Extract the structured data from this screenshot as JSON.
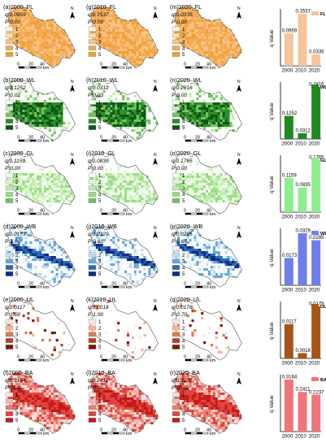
{
  "years": [
    "2000",
    "2010",
    "2020"
  ],
  "axis_label": "q Value",
  "legend_classes": [
    "1",
    "2",
    "3",
    "4",
    "5"
  ],
  "scale_labels": [
    "0",
    "20",
    "40"
  ],
  "scale_unit": "km",
  "north": "N",
  "rows": [
    {
      "type": "FL",
      "colors": [
        "#fff2dc",
        "#fcdcae",
        "#f9c27e",
        "#f5aa57",
        "#efa035"
      ],
      "bar_color": "#f6c49a",
      "panels": [
        {
          "title": "(a)2000_FL",
          "q": "q:0.0959",
          "p": "P:0.00"
        },
        {
          "title": "(g)2010_FL",
          "q": "q:0.1537",
          "p": "P:0.00"
        },
        {
          "title": "(m)2020_FL",
          "q": "q:0.0335",
          "p": "P:0.00"
        }
      ],
      "values": [
        0.0959,
        0.1537,
        0.0335
      ],
      "value_labels": [
        "0.0959",
        "0.1537",
        "0.0335"
      ]
    },
    {
      "type": "WL",
      "colors": [
        "#f4fbf0",
        "#c4ebb4",
        "#73c360",
        "#2c8d2a",
        "#0d5613"
      ],
      "bar_color": "#208a20",
      "panels": [
        {
          "title": "(b)2000_WL",
          "q": "q:0.1252",
          "p": "P:0.02"
        },
        {
          "title": "(h)2010_WL",
          "q": "q:0.0312",
          "p": "P:0.03"
        },
        {
          "title": "(n)2020_WL",
          "q": "q:0.2816",
          "p": "P:0.00"
        }
      ],
      "values": [
        0.1252,
        0.0312,
        0.2816
      ],
      "value_labels": [
        "0.1252",
        "0.0312",
        "0.2816"
      ]
    },
    {
      "type": "GL",
      "colors": [
        "#f6fdf2",
        "#dcf5cf",
        "#bcebaa",
        "#98dc82",
        "#6fc25a"
      ],
      "bar_color": "#8fec8f",
      "panels": [
        {
          "title": "(c)2000_GL",
          "q": "q:0.1159",
          "p": "P:0.00"
        },
        {
          "title": "(i)2010_GL",
          "q": "q:0.0835",
          "p": "P:0.00"
        },
        {
          "title": "(o)2020_GL",
          "q": "q:0.1765",
          "p": "P:0.00"
        }
      ],
      "values": [
        0.1159,
        0.0835,
        0.1765
      ],
      "value_labels": [
        "0.1159",
        "0.0835",
        "0.1765"
      ]
    },
    {
      "type": "WB",
      "colors": [
        "#eef6fc",
        "#bcdcef",
        "#6aa8d8",
        "#2e68b4",
        "#0d2d88"
      ],
      "bar_color": "#6f7fea",
      "panels": [
        {
          "title": "(d)2000_WB",
          "q": "q:0.0173",
          "p": "P:1.00"
        },
        {
          "title": "(j)2010_WB",
          "q": "q:0.0329",
          "p": "P:0.81"
        },
        {
          "title": "(p)2020_WB",
          "q": "q:0.0285",
          "p": "P:0.65"
        }
      ],
      "values": [
        0.0173,
        0.0329,
        0.0285
      ],
      "value_labels": [
        "0.0173",
        "0.0329",
        "0.0285"
      ]
    },
    {
      "type": "UL",
      "colors": [
        "#fbe6dc",
        "#f2b596",
        "#e07a4e",
        "#b84020",
        "#7a1a08"
      ],
      "bar_color": "#a85418",
      "panels": [
        {
          "title": "(e)2000_UL",
          "q": "q:0.0117",
          "p": "P:1.00"
        },
        {
          "title": "(k)2010_UL",
          "q": "q:0.0018",
          "p": "P:1.00"
        },
        {
          "title": "(q)2020_UL",
          "q": "q:0.0178",
          "p": "P:0.70"
        }
      ],
      "values": [
        0.0117,
        0.0018,
        0.0178
      ],
      "value_labels": [
        "0.0117",
        "0.0018",
        "0.0178"
      ]
    },
    {
      "type": "BA",
      "colors": [
        "#fde4e0",
        "#f7b3aa",
        "#ee7a6e",
        "#e0443c",
        "#c41a1a"
      ],
      "bar_color": "#f0757a",
      "panels": [
        {
          "title": "(f)2000_BA",
          "q": "q:0.3164",
          "p": "P:0.00"
        },
        {
          "title": "(l)2010_BA",
          "q": "q:0.2411",
          "p": "P:0.00"
        },
        {
          "title": "(r)2020_BA",
          "q": "q:0.2237",
          "p": "P:0.00"
        }
      ],
      "values": [
        0.3164,
        0.2411,
        0.2237
      ],
      "value_labels": [
        "0.3164",
        "0.2411",
        "0.2237"
      ]
    }
  ],
  "chart_data": [
    {
      "type": "bar",
      "categories": [
        "2000",
        "2010",
        "2020"
      ],
      "series": [
        {
          "name": "FL",
          "values": [
            0.0959,
            0.1537,
            0.0335
          ]
        }
      ],
      "ylabel": "q Value"
    },
    {
      "type": "bar",
      "categories": [
        "2000",
        "2010",
        "2020"
      ],
      "series": [
        {
          "name": "WL",
          "values": [
            0.1252,
            0.0312,
            0.2816
          ]
        }
      ],
      "ylabel": "q Value"
    },
    {
      "type": "bar",
      "categories": [
        "2000",
        "2010",
        "2020"
      ],
      "series": [
        {
          "name": "GL",
          "values": [
            0.1159,
            0.0835,
            0.1765
          ]
        }
      ],
      "ylabel": "q Value"
    },
    {
      "type": "bar",
      "categories": [
        "2000",
        "2010",
        "2020"
      ],
      "series": [
        {
          "name": "WB",
          "values": [
            0.0173,
            0.0329,
            0.0285
          ]
        }
      ],
      "ylabel": "q Value"
    },
    {
      "type": "bar",
      "categories": [
        "2000",
        "2010",
        "2020"
      ],
      "series": [
        {
          "name": "UL",
          "values": [
            0.0117,
            0.0018,
            0.0178
          ]
        }
      ],
      "ylabel": "q Value"
    },
    {
      "type": "bar",
      "categories": [
        "2000",
        "2010",
        "2020"
      ],
      "series": [
        {
          "name": "BA",
          "values": [
            0.3164,
            0.2411,
            0.2237
          ]
        }
      ],
      "ylabel": "q Value"
    }
  ]
}
